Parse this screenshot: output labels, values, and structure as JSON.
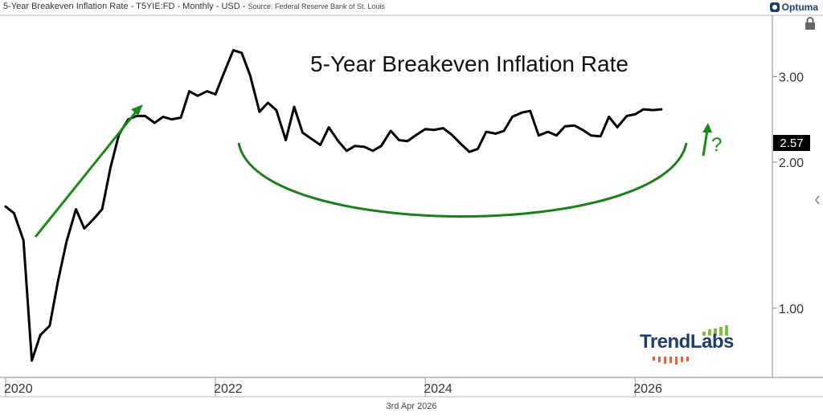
{
  "header": {
    "chart_title": "5-Year Breakeven Inflation Rate - T5YIE:FD - Monthly - USD - ",
    "source": "Source: Federal Reserve Bank of St. Louis",
    "brand": "Optuma",
    "brand_icon": "optuma-logo-icon"
  },
  "annotations": {
    "big_title": "5-Year Breakeven Inflation Rate",
    "question_mark": "?",
    "last_value": "2.57",
    "arrow_color": "#1a8a1a",
    "curve_color": "#1e7d1e"
  },
  "date_label": "3rd Apr 2026",
  "watermark": {
    "text": "TrendLabs",
    "color": "#1f3f6a",
    "bar_color": "#7cc142",
    "dash_color": "#e8603c"
  },
  "chart_data": {
    "type": "line",
    "scale": "log",
    "xlabel": "",
    "ylabel": "",
    "x_ticks": [
      "2020",
      "2022",
      "2024",
      "2026"
    ],
    "x_tick_values": [
      2020,
      2022,
      2024,
      2026
    ],
    "y_ticks": [
      "1.00",
      "2.00",
      "3.00"
    ],
    "y_tick_values": [
      1.0,
      2.0,
      3.0
    ],
    "xlim": [
      2020,
      2027.3
    ],
    "ylim": [
      0.72,
      4.0
    ],
    "grid": false,
    "series": [
      {
        "color": "#000000",
        "x": [
          2020.0,
          2020.08,
          2020.17,
          2020.25,
          2020.33,
          2020.42,
          2020.5,
          2020.58,
          2020.67,
          2020.75,
          2020.83,
          2020.92,
          2021.0,
          2021.08,
          2021.17,
          2021.25,
          2021.33,
          2021.42,
          2021.5,
          2021.58,
          2021.67,
          2021.75,
          2021.83,
          2021.92,
          2022.0,
          2022.08,
          2022.17,
          2022.25,
          2022.33,
          2022.42,
          2022.5,
          2022.58,
          2022.67,
          2022.75,
          2022.83,
          2022.92,
          2023.0,
          2023.08,
          2023.17,
          2023.25,
          2023.33,
          2023.42,
          2023.5,
          2023.58,
          2023.67,
          2023.75,
          2023.83,
          2023.92,
          2024.0,
          2024.08,
          2024.17,
          2024.25,
          2024.33,
          2024.42,
          2024.5,
          2024.58,
          2024.67,
          2024.75,
          2024.83,
          2024.92,
          2025.0,
          2025.08,
          2025.17,
          2025.25,
          2025.33,
          2025.42,
          2025.5,
          2025.58,
          2025.67,
          2025.75,
          2025.83,
          2025.92,
          2026.0,
          2026.08,
          2026.17,
          2026.25
        ],
        "y": [
          1.62,
          1.57,
          1.38,
          0.78,
          0.88,
          0.92,
          1.14,
          1.37,
          1.6,
          1.46,
          1.52,
          1.6,
          1.95,
          2.28,
          2.45,
          2.49,
          2.49,
          2.41,
          2.48,
          2.45,
          2.47,
          2.8,
          2.74,
          2.8,
          2.76,
          3.05,
          3.4,
          3.36,
          3.02,
          2.54,
          2.65,
          2.56,
          2.22,
          2.6,
          2.3,
          2.23,
          2.17,
          2.36,
          2.21,
          2.11,
          2.16,
          2.15,
          2.11,
          2.16,
          2.32,
          2.22,
          2.21,
          2.28,
          2.34,
          2.33,
          2.35,
          2.28,
          2.19,
          2.1,
          2.13,
          2.31,
          2.29,
          2.32,
          2.48,
          2.53,
          2.55,
          2.27,
          2.31,
          2.27,
          2.37,
          2.38,
          2.33,
          2.27,
          2.26,
          2.48,
          2.36,
          2.49,
          2.51,
          2.57,
          2.56,
          2.57
        ]
      }
    ]
  }
}
